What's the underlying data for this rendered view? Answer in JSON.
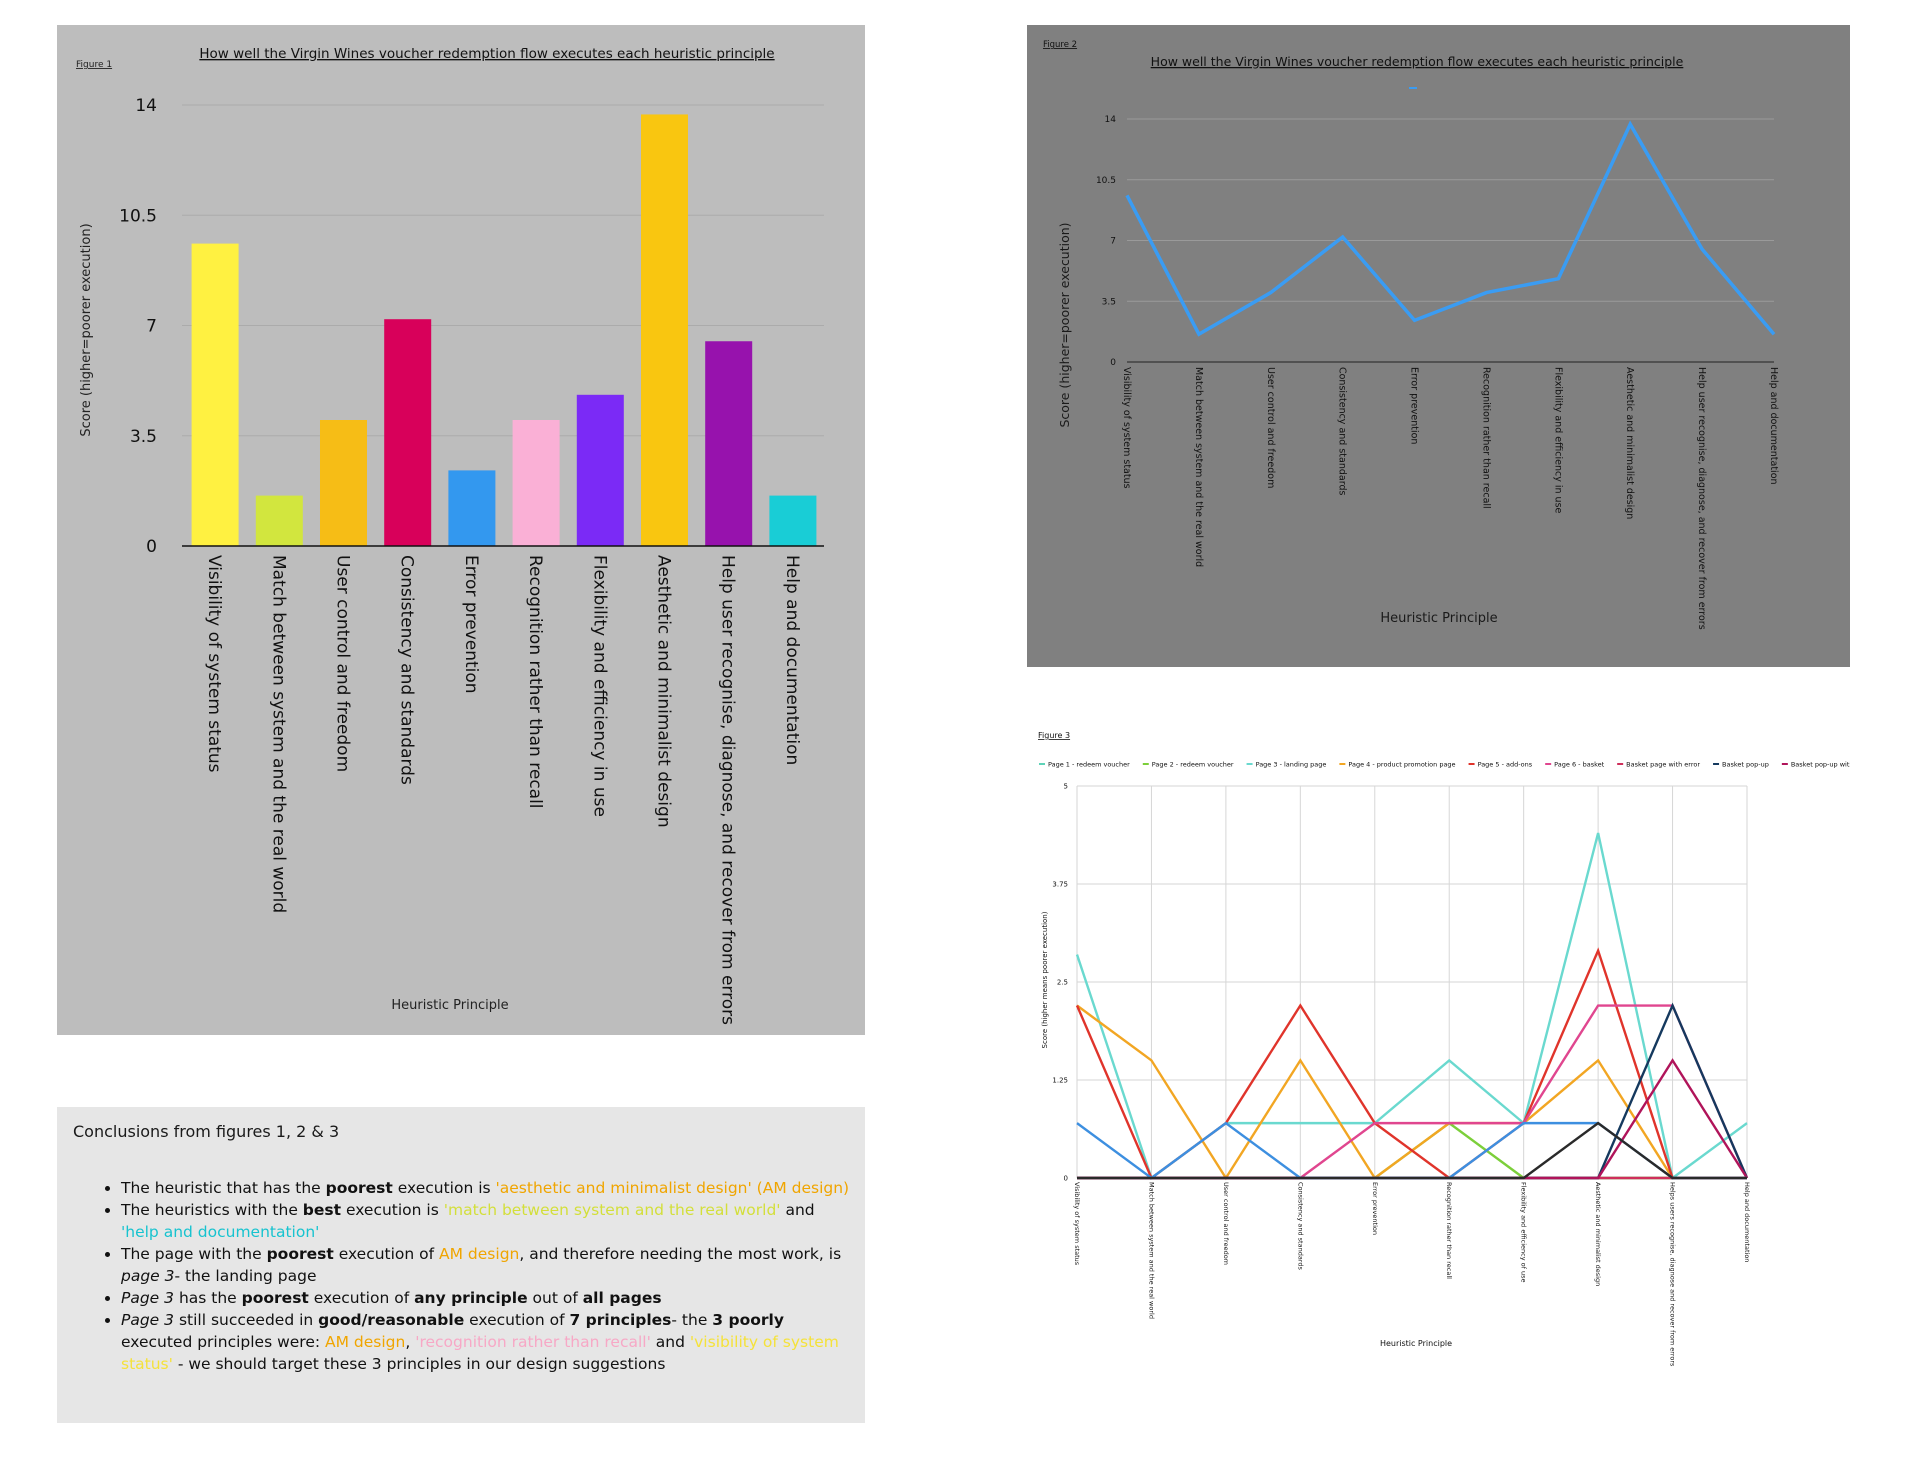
{
  "figure1": {
    "label": "Figure 1",
    "chart_data": {
      "type": "bar",
      "title": "How well the Virgin Wines voucher redemption flow executes each heuristic principle",
      "xlabel": "Heuristic Principle",
      "ylabel": "Score (higher=poorer execution)",
      "ylim": [
        0,
        14
      ],
      "yticks": [
        "0",
        "3.5",
        "7",
        "10.5",
        "14"
      ],
      "categories": [
        "Visibility of system status",
        "Match between system and the real world",
        "User control and freedom",
        "Consistency and standards",
        "Error prevention",
        "Recognition rather than recall",
        "Flexibility and efficiency in use",
        "Aesthetic and minimalist design",
        "Help user recognise, diagnose, and recover from errors",
        "Help and documentation"
      ],
      "values": [
        9.6,
        1.6,
        4.0,
        7.2,
        2.4,
        4.0,
        4.8,
        13.7,
        6.5,
        1.6
      ],
      "colors": [
        "#fff141",
        "#d2e63e",
        "#f6bd16",
        "#d8005a",
        "#3398ef",
        "#fab0d6",
        "#7b2af6",
        "#f9c610",
        "#9712ad",
        "#19cdd6"
      ]
    }
  },
  "figure2": {
    "label": "Figure 2",
    "chart_data": {
      "type": "line",
      "title": "How well the Virgin Wines voucher redemption flow executes each heuristic principle",
      "xlabel": "Heuristic Principle",
      "ylabel": "Score (higher=poorer execution)",
      "ylim": [
        0,
        14
      ],
      "yticks": [
        "0",
        "3.5",
        "7",
        "10.5",
        "14"
      ],
      "categories": [
        "Visibility of system status",
        "Match between system and the real world",
        "User control and freedom",
        "Consistency and standards",
        "Error prevention",
        "Recognition rather than recall",
        "Flexibility and efficiency in use",
        "Aesthetic and minimalist design",
        "Help user recognise, diagnose, and recover from errors",
        "Help and documentation"
      ],
      "series": [
        {
          "name": "",
          "color": "#3a9cf3",
          "values": [
            9.6,
            1.6,
            4.0,
            7.2,
            2.4,
            4.0,
            4.8,
            13.7,
            6.5,
            1.6
          ]
        }
      ]
    }
  },
  "figure3": {
    "label": "Figure 3",
    "chart_data": {
      "type": "line",
      "title": "",
      "xlabel": "Heuristic Principle",
      "ylabel": "Score (higher means poorer execution)",
      "ylim": [
        0,
        5
      ],
      "yticks": [
        "0",
        "1.25",
        "2.5",
        "3.75",
        "5"
      ],
      "categories": [
        "Visibility of system status",
        "Match between system and the real world",
        "User control and freedom",
        "Consistency and standards",
        "Error prevention",
        "Recognition rather than recall",
        "Flexibility and efficiency of use",
        "Aesthetic and minimalist design",
        "Helps users recognise, diagnose and recover from errors",
        "Help and documentation"
      ],
      "series": [
        {
          "name": "Page 1 - redeem voucher",
          "color": "#5fd3b8",
          "values": [
            0,
            0,
            0,
            0,
            0,
            0,
            0,
            0,
            0,
            0
          ]
        },
        {
          "name": "Page 2 - redeem voucher",
          "color": "#7ccf3a",
          "values": [
            0,
            0,
            0,
            0,
            0,
            0.7,
            0,
            0,
            0,
            0
          ]
        },
        {
          "name": "Page 3 - landing page",
          "color": "#6ad9cf",
          "values": [
            2.85,
            0,
            0.7,
            0.7,
            0.7,
            1.5,
            0.7,
            4.4,
            0,
            0.7
          ]
        },
        {
          "name": "Page 4 - product promotion page",
          "color": "#f2a623",
          "values": [
            2.2,
            1.5,
            0,
            1.5,
            0,
            0.7,
            0.7,
            1.5,
            0,
            0
          ]
        },
        {
          "name": "Page 5 - add-ons",
          "color": "#e0342b",
          "values": [
            2.2,
            0,
            0.7,
            2.2,
            0.7,
            0,
            0.7,
            2.9,
            0,
            0
          ]
        },
        {
          "name": "Page 6 - basket",
          "color": "#e0468f",
          "values": [
            0,
            0,
            0,
            0,
            0.7,
            0.7,
            0.7,
            2.2,
            2.2,
            0
          ]
        },
        {
          "name": "Basket page with error",
          "color": "#cf2f5b",
          "values": [
            0,
            0,
            0,
            0,
            0,
            0,
            0,
            0,
            0,
            0
          ]
        },
        {
          "name": "Basket pop-up",
          "color": "#15395e",
          "values": [
            0,
            0,
            0,
            0,
            0,
            0,
            0,
            0,
            2.2,
            0
          ]
        },
        {
          "name": "Basket pop-up with error",
          "color": "#b0145a",
          "values": [
            0,
            0,
            0,
            0,
            0,
            0,
            0,
            0,
            1.5,
            0
          ]
        },
        {
          "name": "",
          "color": "#3d8fe0",
          "values": [
            0.7,
            0,
            0.7,
            0,
            0,
            0,
            0.7,
            0.7,
            0,
            0
          ]
        },
        {
          "name": "",
          "color": "#2a2a2a",
          "values": [
            0,
            0,
            0,
            0,
            0,
            0,
            0,
            0.7,
            0,
            0
          ]
        }
      ]
    }
  },
  "conclusions": {
    "title": "Conclusions from figures 1, 2 & 3",
    "b1": {
      "t1": "The heuristic that has the ",
      "b": "poorest",
      "t2": " execution is ",
      "h1": "'aesthetic and minimalist design' (AM design)"
    },
    "b2": {
      "t1": "The heuristics with the ",
      "b": "best",
      "t2": " execution is ",
      "h1": "'match between system and the real world'",
      "t3": " and ",
      "h2": "'help and documentation'"
    },
    "b3": {
      "t1": "The page with the ",
      "b": "poorest",
      "t2": " execution of ",
      "h1": "AM design",
      "t3": ", and therefore needing the most work, is ",
      "i": "page 3",
      "t4": "- the landing page"
    },
    "b4": {
      "i": "Page 3",
      "t1": " has the ",
      "b1": "poorest",
      "t2": " execution of ",
      "b2": "any principle",
      "t3": " out of ",
      "b3": "all pages"
    },
    "b5": {
      "i": "Page 3",
      "t1": " still succeeded in ",
      "b1": "good/reasonable",
      "t2": " execution of ",
      "b2": "7 principles",
      "t3": "- the ",
      "b3": "3 poorly",
      "t4": " executed principles were: ",
      "h1": "AM design",
      "t5": ", ",
      "h2": "'recognition rather than recall'",
      "t6": " and ",
      "h3": "'visibility of system status'",
      "t7": " - we should target these 3 principles in our design suggestions"
    }
  }
}
